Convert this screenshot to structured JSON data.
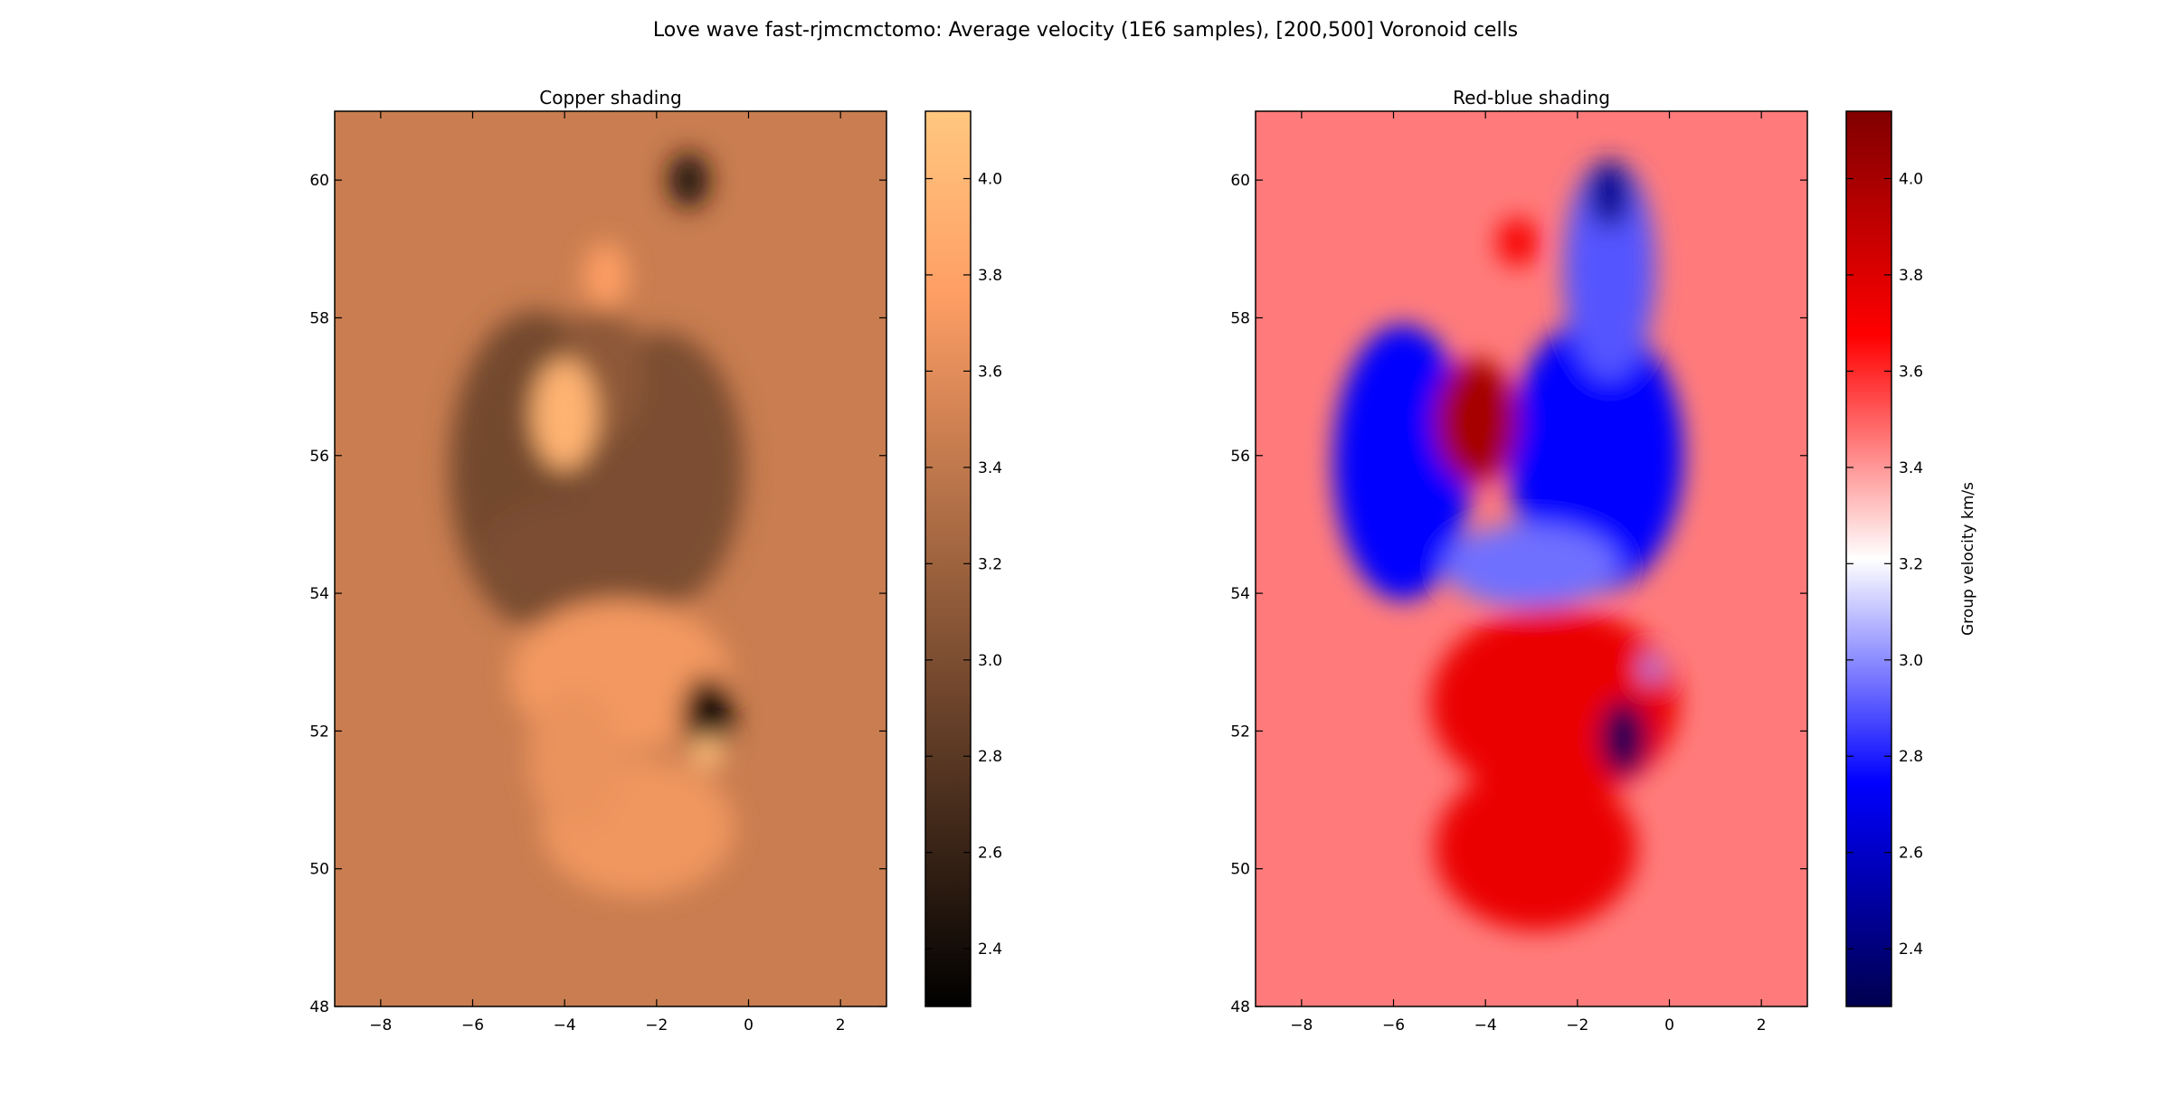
{
  "figure_title": "Love wave fast-rjmcmctomo: Average velocity (1E6 samples), [200,500] Voronoid cells",
  "chart_data": [
    {
      "type": "heatmap",
      "title": "Copper shading",
      "colormap": "copper",
      "xlim": [
        -9.0,
        3.0
      ],
      "ylim": [
        48.0,
        61.0
      ],
      "x_ticks": [
        -8,
        -6,
        -4,
        -2,
        0,
        2
      ],
      "x_tick_labels": [
        "−8",
        "−6",
        "−4",
        "−2",
        "0",
        "2"
      ],
      "y_ticks": [
        48,
        50,
        52,
        54,
        56,
        58,
        60
      ],
      "y_tick_labels": [
        "48",
        "50",
        "52",
        "54",
        "56",
        "58",
        "60"
      ],
      "colorbar": {
        "range": [
          2.28,
          4.14
        ],
        "ticks": [
          2.4,
          2.6,
          2.8,
          3.0,
          3.2,
          3.4,
          3.6,
          3.8,
          4.0
        ],
        "tick_labels": [
          "2.4",
          "2.6",
          "2.8",
          "3.0",
          "3.2",
          "3.4",
          "3.6",
          "3.8",
          "4.0"
        ],
        "label": ""
      },
      "background_value": 3.45,
      "features": [
        {
          "x": -4.6,
          "y": 55.8,
          "rx": 1.9,
          "ry": 2.3,
          "value": 2.95
        },
        {
          "x": -1.9,
          "y": 55.8,
          "rx": 1.8,
          "ry": 2.0,
          "value": 3.0
        },
        {
          "x": -3.5,
          "y": 54.5,
          "rx": 2.4,
          "ry": 0.9,
          "value": 3.0
        },
        {
          "x": -3.2,
          "y": 57.2,
          "rx": 0.9,
          "ry": 1.0,
          "value": 3.1
        },
        {
          "x": -4.0,
          "y": 56.6,
          "rx": 0.7,
          "ry": 0.8,
          "value": 3.95
        },
        {
          "x": -3.1,
          "y": 58.6,
          "rx": 0.5,
          "ry": 0.5,
          "value": 3.75
        },
        {
          "x": -1.3,
          "y": 60.0,
          "rx": 0.45,
          "ry": 0.4,
          "value": 2.5
        },
        {
          "x": -2.8,
          "y": 52.8,
          "rx": 2.4,
          "ry": 1.1,
          "value": 3.7
        },
        {
          "x": -2.4,
          "y": 50.6,
          "rx": 2.1,
          "ry": 1.0,
          "value": 3.68
        },
        {
          "x": -3.8,
          "y": 51.6,
          "rx": 1.0,
          "ry": 1.0,
          "value": 3.65
        },
        {
          "x": -0.9,
          "y": 52.2,
          "rx": 0.55,
          "ry": 0.6,
          "value": 2.3
        },
        {
          "x": -0.9,
          "y": 51.7,
          "rx": 0.35,
          "ry": 0.25,
          "value": 4.05
        }
      ]
    },
    {
      "type": "heatmap",
      "title": "Red-blue shading",
      "colormap": "seismic_r",
      "xlim": [
        -9.0,
        3.0
      ],
      "ylim": [
        48.0,
        61.0
      ],
      "x_ticks": [
        -8,
        -6,
        -4,
        -2,
        0,
        2
      ],
      "x_tick_labels": [
        "−8",
        "−6",
        "−4",
        "−2",
        "0",
        "2"
      ],
      "y_ticks": [
        48,
        50,
        52,
        54,
        56,
        58,
        60
      ],
      "y_tick_labels": [
        "48",
        "50",
        "52",
        "54",
        "56",
        "58",
        "60"
      ],
      "colorbar": {
        "range": [
          2.28,
          4.14
        ],
        "ticks": [
          2.4,
          2.6,
          2.8,
          3.0,
          3.2,
          3.4,
          3.6,
          3.8,
          4.0
        ],
        "tick_labels": [
          "2.4",
          "2.6",
          "2.8",
          "3.0",
          "3.2",
          "3.4",
          "3.6",
          "3.8",
          "4.0"
        ],
        "label": "Group velocity km/s"
      },
      "background_value": 3.45,
      "features": [
        {
          "x": -5.8,
          "y": 55.9,
          "rx": 1.5,
          "ry": 2.0,
          "value": 2.75
        },
        {
          "x": -1.6,
          "y": 56.0,
          "rx": 1.9,
          "ry": 2.0,
          "value": 2.75
        },
        {
          "x": -1.3,
          "y": 58.7,
          "rx": 1.0,
          "ry": 1.6,
          "value": 2.9
        },
        {
          "x": -3.0,
          "y": 54.4,
          "rx": 1.9,
          "ry": 0.6,
          "value": 2.95
        },
        {
          "x": -4.2,
          "y": 56.5,
          "rx": 0.9,
          "ry": 0.9,
          "value": 4.0
        },
        {
          "x": -3.3,
          "y": 59.1,
          "rx": 0.45,
          "ry": 0.35,
          "value": 3.7
        },
        {
          "x": -1.3,
          "y": 59.8,
          "rx": 0.45,
          "ry": 0.5,
          "value": 2.45
        },
        {
          "x": -2.5,
          "y": 52.4,
          "rx": 2.7,
          "ry": 1.4,
          "value": 3.75
        },
        {
          "x": -2.9,
          "y": 50.3,
          "rx": 2.2,
          "ry": 1.2,
          "value": 3.75
        },
        {
          "x": -1.0,
          "y": 51.9,
          "rx": 0.5,
          "ry": 0.55,
          "value": 2.3
        },
        {
          "x": -0.4,
          "y": 52.9,
          "rx": 0.2,
          "ry": 0.2,
          "value": 3.0
        }
      ]
    }
  ]
}
